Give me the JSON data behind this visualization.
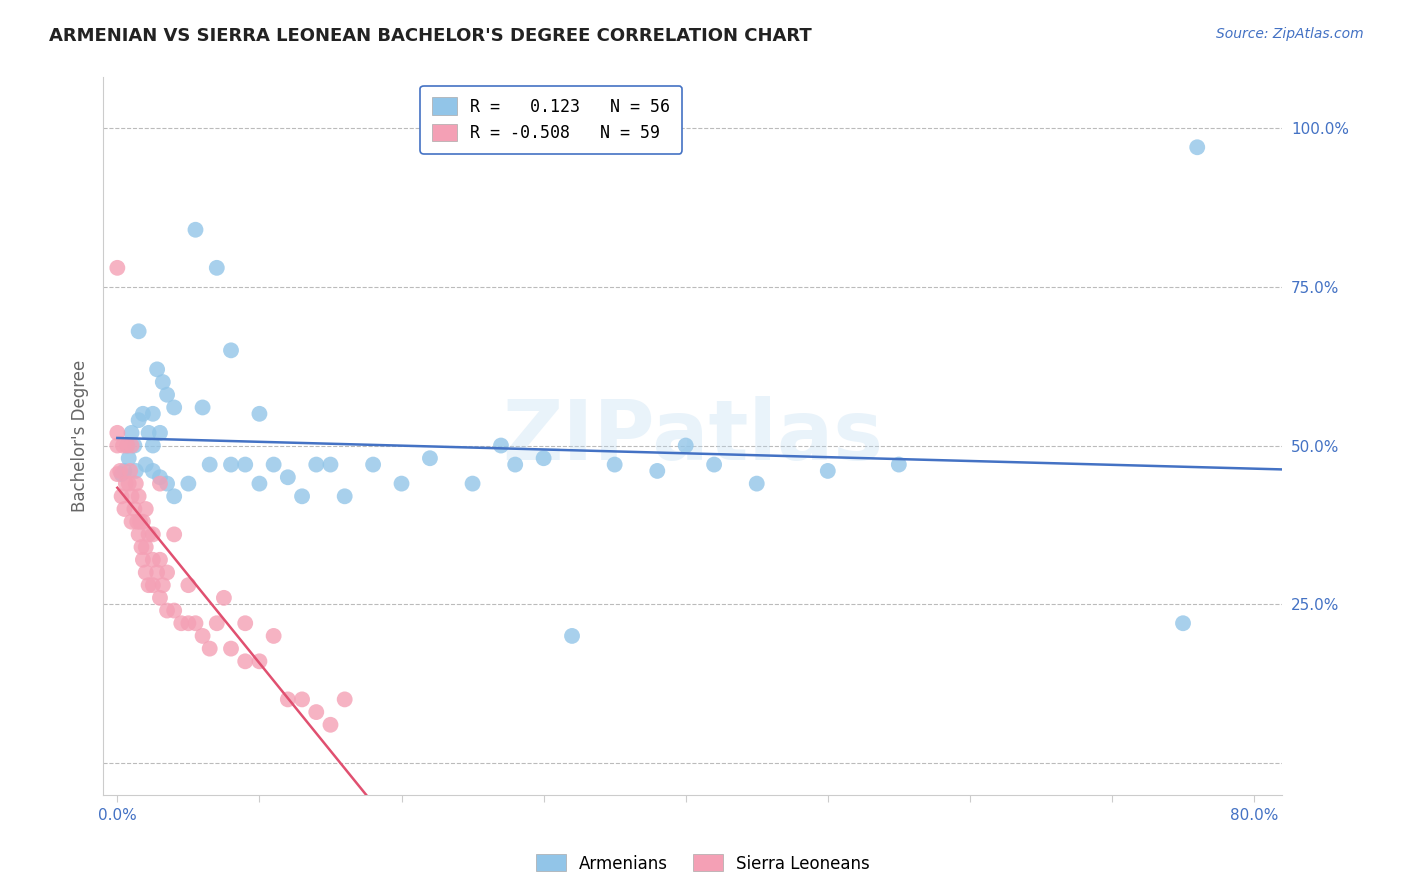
{
  "title": "ARMENIAN VS SIERRA LEONEAN BACHELOR'S DEGREE CORRELATION CHART",
  "source": "Source: ZipAtlas.com",
  "ylabel": "Bachelor's Degree",
  "xlabel_ticks": [
    "0.0%",
    "",
    "",
    "",
    "",
    "",
    "",
    "",
    "80.0%"
  ],
  "xlabel_vals": [
    0.0,
    0.1,
    0.2,
    0.3,
    0.4,
    0.5,
    0.6,
    0.7,
    0.8
  ],
  "ylabel_ticks": [
    "25.0%",
    "50.0%",
    "75.0%",
    "100.0%"
  ],
  "ylabel_vals": [
    0.25,
    0.5,
    0.75,
    1.0
  ],
  "grid_vals": [
    0.0,
    0.25,
    0.5,
    0.75,
    1.0
  ],
  "xlim": [
    -0.01,
    0.82
  ],
  "ylim": [
    -0.05,
    1.08
  ],
  "watermark": "ZIPatlas",
  "legend_armenians": "Armenians",
  "legend_sierra": "Sierra Leoneans",
  "r_armenians": 0.123,
  "n_armenians": 56,
  "r_sierra": -0.508,
  "n_sierra": 59,
  "color_armenians": "#92C5E8",
  "color_sierra": "#F4A0B5",
  "color_line_armenians": "#4472C4",
  "color_line_sierra": "#E05070",
  "color_axis": "#4472C4",
  "color_grid": "#BBBBBB",
  "armenians_x": [
    0.003,
    0.005,
    0.007,
    0.008,
    0.01,
    0.012,
    0.013,
    0.015,
    0.015,
    0.018,
    0.02,
    0.022,
    0.025,
    0.025,
    0.025,
    0.028,
    0.03,
    0.03,
    0.032,
    0.035,
    0.035,
    0.04,
    0.04,
    0.05,
    0.055,
    0.06,
    0.065,
    0.07,
    0.08,
    0.08,
    0.09,
    0.1,
    0.1,
    0.11,
    0.12,
    0.13,
    0.14,
    0.15,
    0.16,
    0.18,
    0.2,
    0.22,
    0.25,
    0.27,
    0.28,
    0.3,
    0.32,
    0.35,
    0.38,
    0.4,
    0.42,
    0.45,
    0.5,
    0.55,
    0.75,
    0.76
  ],
  "armenians_y": [
    0.455,
    0.46,
    0.5,
    0.48,
    0.52,
    0.5,
    0.46,
    0.54,
    0.68,
    0.55,
    0.47,
    0.52,
    0.46,
    0.5,
    0.55,
    0.62,
    0.45,
    0.52,
    0.6,
    0.44,
    0.58,
    0.42,
    0.56,
    0.44,
    0.84,
    0.56,
    0.47,
    0.78,
    0.47,
    0.65,
    0.47,
    0.44,
    0.55,
    0.47,
    0.45,
    0.42,
    0.47,
    0.47,
    0.42,
    0.47,
    0.44,
    0.48,
    0.44,
    0.5,
    0.47,
    0.48,
    0.2,
    0.47,
    0.46,
    0.5,
    0.47,
    0.44,
    0.46,
    0.47,
    0.22,
    0.97
  ],
  "sierra_x": [
    0.0,
    0.0,
    0.0,
    0.0,
    0.002,
    0.003,
    0.004,
    0.005,
    0.006,
    0.007,
    0.008,
    0.009,
    0.01,
    0.01,
    0.01,
    0.012,
    0.013,
    0.014,
    0.015,
    0.015,
    0.016,
    0.017,
    0.018,
    0.018,
    0.02,
    0.02,
    0.02,
    0.022,
    0.022,
    0.025,
    0.025,
    0.025,
    0.028,
    0.03,
    0.03,
    0.03,
    0.032,
    0.035,
    0.035,
    0.04,
    0.04,
    0.045,
    0.05,
    0.05,
    0.055,
    0.06,
    0.065,
    0.07,
    0.075,
    0.08,
    0.09,
    0.09,
    0.1,
    0.11,
    0.12,
    0.13,
    0.14,
    0.15,
    0.16
  ],
  "sierra_y": [
    0.455,
    0.5,
    0.52,
    0.78,
    0.46,
    0.42,
    0.5,
    0.4,
    0.44,
    0.5,
    0.44,
    0.46,
    0.38,
    0.42,
    0.5,
    0.4,
    0.44,
    0.38,
    0.36,
    0.42,
    0.38,
    0.34,
    0.32,
    0.38,
    0.3,
    0.34,
    0.4,
    0.28,
    0.36,
    0.28,
    0.32,
    0.36,
    0.3,
    0.26,
    0.32,
    0.44,
    0.28,
    0.24,
    0.3,
    0.24,
    0.36,
    0.22,
    0.22,
    0.28,
    0.22,
    0.2,
    0.18,
    0.22,
    0.26,
    0.18,
    0.16,
    0.22,
    0.16,
    0.2,
    0.1,
    0.1,
    0.08,
    0.06,
    0.1
  ]
}
